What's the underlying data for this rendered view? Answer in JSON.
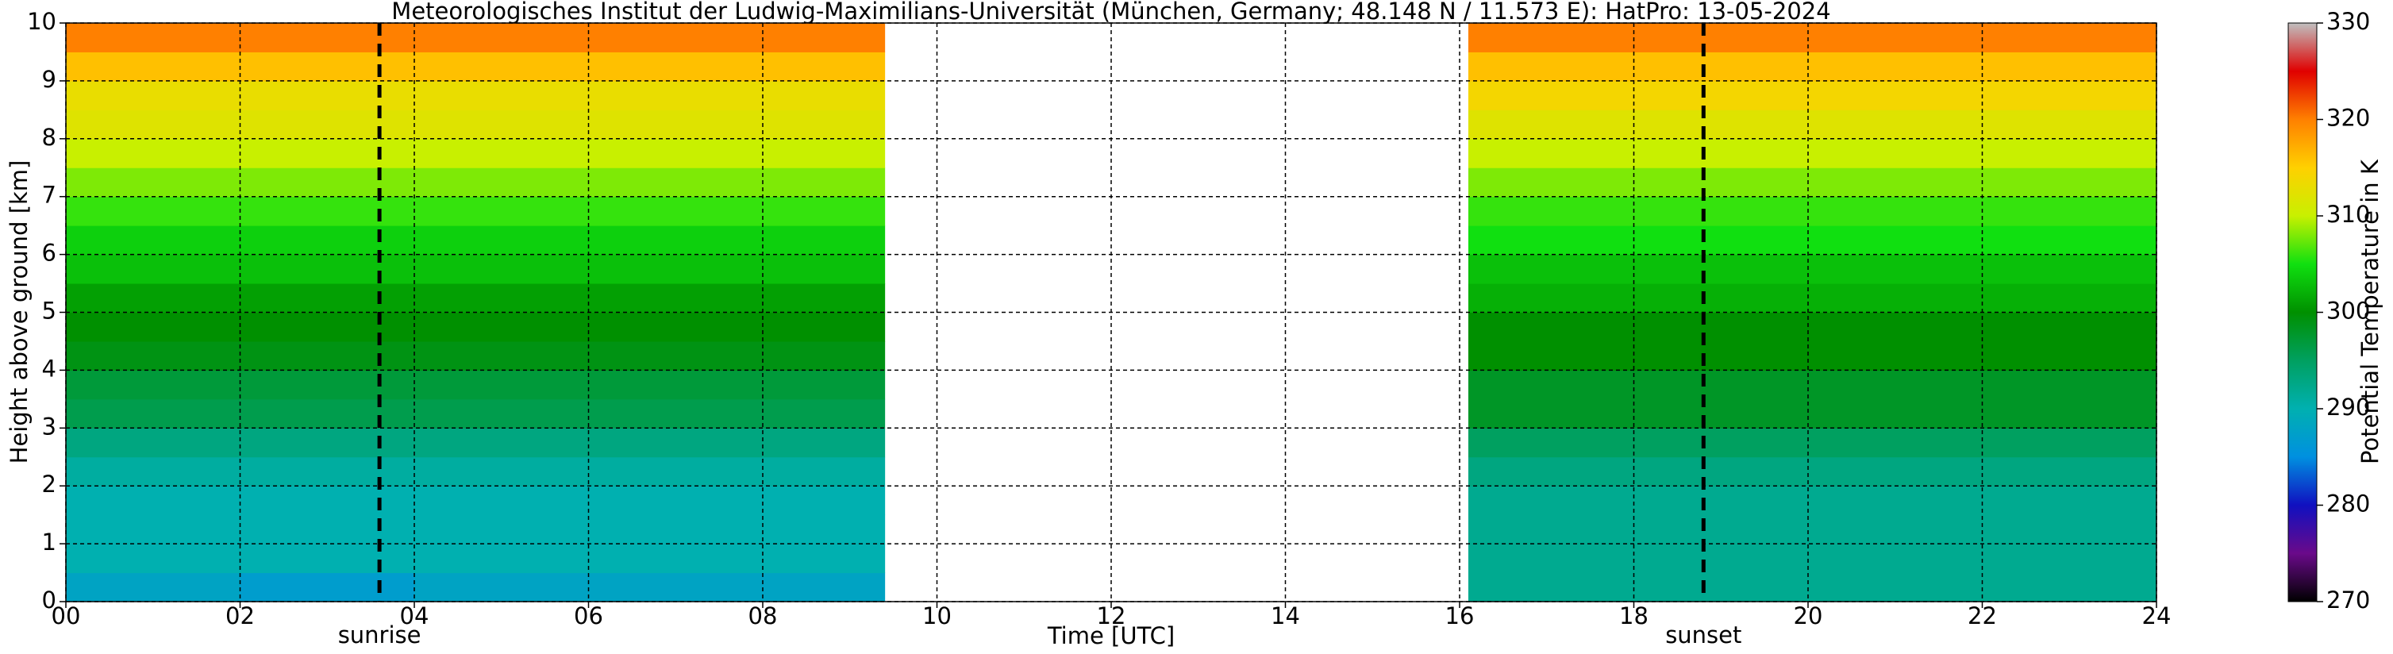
{
  "chart_data": {
    "type": "heatmap",
    "title": "Meteorologisches Institut der Ludwig-Maximilians-Universität (München, Germany; 48.148 N / 11.573 E):    HatPro: 13-05-2024",
    "xlabel": "Time [UTC]",
    "ylabel": "Height above ground [km]",
    "colorbar_label": "Potential Temperature in K",
    "xlim": [
      0,
      24
    ],
    "ylim": [
      0,
      10
    ],
    "xticks": [
      {
        "value": 0,
        "label": "00"
      },
      {
        "value": 2,
        "label": "02"
      },
      {
        "value": 4,
        "label": "04"
      },
      {
        "value": 6,
        "label": "06"
      },
      {
        "value": 8,
        "label": "08"
      },
      10,
      12,
      14,
      16,
      18,
      20,
      22,
      24
    ],
    "yticks": [
      0,
      1,
      2,
      3,
      4,
      5,
      6,
      7,
      8,
      9,
      10
    ],
    "clim": [
      270,
      330
    ],
    "cticks": [
      270,
      280,
      290,
      300,
      310,
      320,
      330
    ],
    "color_stops": [
      "#000000",
      "#6a0a8a",
      "#1010c0",
      "#0090e0",
      "#00b0b0",
      "#00a060",
      "#009000",
      "#10e010",
      "#c8f000",
      "#ffd000",
      "#ff8000",
      "#e00000",
      "#c0c0c0"
    ],
    "grid": true,
    "x_edges": [
      0,
      2,
      4,
      6,
      8,
      9.4,
      16.1,
      18,
      20,
      22,
      24
    ],
    "y_edges": [
      0,
      0.5,
      1,
      1.5,
      2,
      2.5,
      3,
      3.5,
      4,
      4.5,
      5,
      5.5,
      6,
      6.5,
      7,
      7.5,
      8,
      8.5,
      9,
      9.5,
      10
    ],
    "z": [
      [
        288,
        290,
        290,
        290,
        291,
        293,
        296,
        297,
        299,
        300,
        301,
        303,
        304,
        306,
        308,
        310,
        312,
        313,
        316,
        320
      ],
      [
        287,
        290,
        290,
        290,
        291,
        293,
        296,
        297,
        299,
        300,
        301,
        303,
        304,
        306,
        308,
        310,
        312,
        313,
        316,
        320
      ],
      [
        288,
        290,
        290,
        290,
        291,
        293,
        296,
        297,
        299,
        300,
        301,
        303,
        304,
        306,
        308,
        310,
        312,
        313,
        316,
        320
      ],
      [
        288,
        290,
        290,
        290,
        291,
        293,
        296,
        297,
        299,
        300,
        301,
        303,
        304,
        306,
        308,
        310,
        312,
        313,
        316,
        320
      ],
      [
        288,
        290,
        290,
        290,
        291,
        293,
        296,
        297,
        299,
        300,
        301,
        303,
        304,
        306,
        308,
        310,
        312,
        313,
        316,
        320
      ],
      null,
      [
        292,
        292,
        292,
        292,
        293,
        295,
        298,
        298,
        300,
        300,
        302,
        303,
        305,
        306,
        308,
        310,
        312,
        314,
        316,
        320
      ],
      [
        292,
        292,
        292,
        292,
        293,
        295,
        298,
        298,
        300,
        300,
        302,
        303,
        305,
        306,
        308,
        310,
        312,
        314,
        316,
        320
      ],
      [
        292,
        292,
        292,
        292,
        293,
        295,
        298,
        298,
        300,
        300,
        302,
        303,
        305,
        306,
        308,
        310,
        312,
        314,
        316,
        320
      ],
      [
        292,
        292,
        292,
        292,
        293,
        295,
        298,
        298,
        300,
        300,
        302,
        303,
        305,
        306,
        308,
        310,
        312,
        314,
        316,
        320
      ]
    ],
    "annotations": [
      {
        "x": 3.6,
        "label": "sunrise"
      },
      {
        "x": 18.8,
        "label": "sunset"
      }
    ]
  }
}
